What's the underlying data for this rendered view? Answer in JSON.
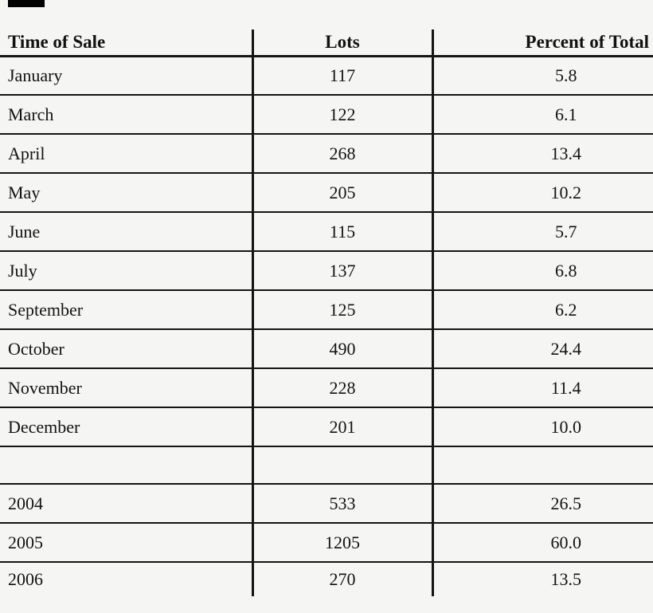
{
  "page": {
    "background": "#f5f5f4",
    "line_color": "#141414",
    "text_color": "#121212",
    "redaction_color": "#000000"
  },
  "table": {
    "columns": [
      {
        "key": "time_of_sale",
        "label": "Time of Sale",
        "align": "left"
      },
      {
        "key": "lots",
        "label": "Lots",
        "align": "center"
      },
      {
        "key": "percent_of_total",
        "label": "Percent of Total",
        "align": "right"
      }
    ],
    "rows": [
      {
        "time_of_sale": "January",
        "lots": "117",
        "percent_of_total": "5.8"
      },
      {
        "time_of_sale": "March",
        "lots": "122",
        "percent_of_total": "6.1"
      },
      {
        "time_of_sale": "April",
        "lots": "268",
        "percent_of_total": "13.4"
      },
      {
        "time_of_sale": "May",
        "lots": "205",
        "percent_of_total": "10.2"
      },
      {
        "time_of_sale": "June",
        "lots": "115",
        "percent_of_total": "5.7"
      },
      {
        "time_of_sale": "July",
        "lots": "137",
        "percent_of_total": "6.8"
      },
      {
        "time_of_sale": "September",
        "lots": "125",
        "percent_of_total": "6.2"
      },
      {
        "time_of_sale": "October",
        "lots": "490",
        "percent_of_total": "24.4"
      },
      {
        "time_of_sale": "November",
        "lots": "228",
        "percent_of_total": "11.4"
      },
      {
        "time_of_sale": "December",
        "lots": "201",
        "percent_of_total": "10.0"
      },
      {
        "time_of_sale": "",
        "lots": "",
        "percent_of_total": "",
        "divider": true
      },
      {
        "time_of_sale": "2004",
        "lots": "533",
        "percent_of_total": "26.5"
      },
      {
        "time_of_sale": "2005",
        "lots": "1205",
        "percent_of_total": "60.0"
      },
      {
        "time_of_sale": "2006",
        "lots": "270",
        "percent_of_total": "13.5"
      }
    ]
  },
  "chart_data": {
    "type": "table",
    "title": "",
    "columns": [
      "Time of Sale",
      "Lots",
      "Percent of Total"
    ],
    "rows": [
      [
        "January",
        117,
        5.8
      ],
      [
        "March",
        122,
        6.1
      ],
      [
        "April",
        268,
        13.4
      ],
      [
        "May",
        205,
        10.2
      ],
      [
        "June",
        115,
        5.7
      ],
      [
        "July",
        137,
        6.8
      ],
      [
        "September",
        125,
        6.2
      ],
      [
        "October",
        490,
        24.4
      ],
      [
        "November",
        228,
        11.4
      ],
      [
        "December",
        201,
        10.0
      ],
      [
        "2004",
        533,
        26.5
      ],
      [
        "2005",
        1205,
        60.0
      ],
      [
        "2006",
        270,
        13.5
      ]
    ]
  }
}
